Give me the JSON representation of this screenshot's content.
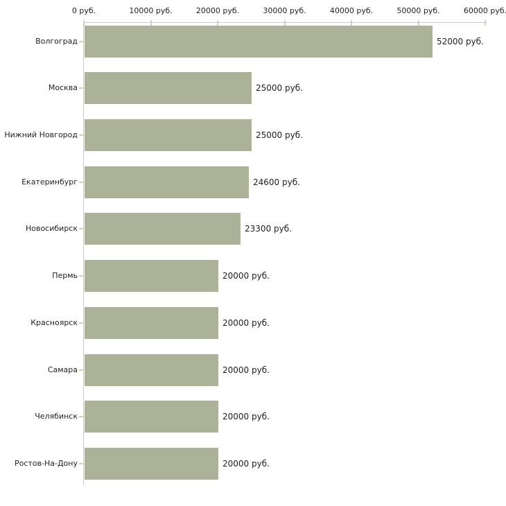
{
  "chart_data": {
    "type": "bar",
    "orientation": "horizontal",
    "categories": [
      "Волгоград",
      "Москва",
      "Нижний Новгород",
      "Екатеринбург",
      "Новосибирск",
      "Пермь",
      "Красноярск",
      "Самара",
      "Челябинск",
      "Ростов-На-Дону"
    ],
    "values": [
      52000,
      25000,
      25000,
      24600,
      23300,
      20000,
      20000,
      20000,
      20000,
      20000
    ],
    "bar_labels": [
      "52000 руб.",
      "25000 руб.",
      "25000 руб.",
      "24600 руб.",
      "23300 руб.",
      "20000 руб.",
      "20000 руб.",
      "20000 руб.",
      "20000 руб.",
      "20000 руб."
    ],
    "x_axis": {
      "position": "top",
      "min": 0,
      "max": 60000,
      "tick_values": [
        0,
        10000,
        20000,
        30000,
        40000,
        50000,
        60000
      ],
      "tick_labels": [
        "0 руб.",
        "10000 руб.",
        "20000 руб.",
        "30000 руб.",
        "40000 руб.",
        "50000 руб.",
        "60000 руб."
      ]
    },
    "grid": false,
    "legend": false,
    "colors": {
      "bar": "#abb298",
      "axis_line": "#c9c9c9",
      "tick": "#d6d2b0",
      "text": "#222222"
    }
  }
}
